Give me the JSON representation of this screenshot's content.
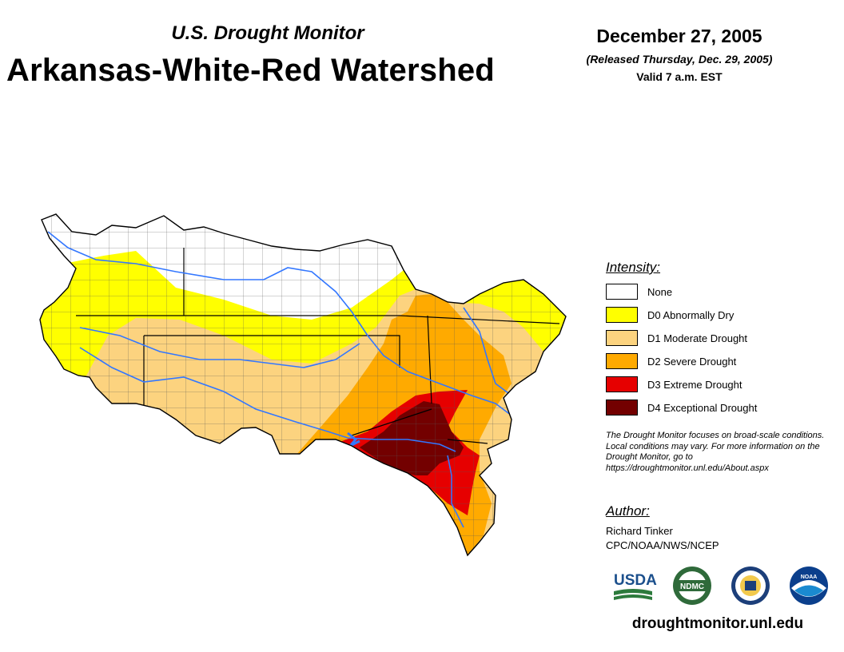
{
  "header": {
    "subtitle": "U.S. Drought Monitor",
    "title": "Arkansas-White-Red Watershed",
    "date": "December 27, 2005",
    "released": "(Released Thursday, Dec. 29, 2005)",
    "valid": "Valid 7 a.m. EST"
  },
  "legend": {
    "heading": "Intensity:",
    "items": [
      {
        "label": "None",
        "color": "#ffffff"
      },
      {
        "label": "D0 Abnormally Dry",
        "color": "#ffff00"
      },
      {
        "label": "D1 Moderate Drought",
        "color": "#fcd37f"
      },
      {
        "label": "D2 Severe Drought",
        "color": "#ffaa00"
      },
      {
        "label": "D3 Extreme Drought",
        "color": "#e60000"
      },
      {
        "label": "D4 Exceptional Drought",
        "color": "#730000"
      }
    ]
  },
  "note": "The Drought Monitor focuses on broad-scale conditions. Local conditions may vary. For more information on the Drought Monitor, go to https://droughtmonitor.unl.edu/About.aspx",
  "author": {
    "heading": "Author:",
    "name": "Richard Tinker",
    "org": "CPC/NOAA/NWS/NCEP"
  },
  "logos": {
    "usda": "USDA",
    "ndmc": "NDMC",
    "noaa": "NOAA"
  },
  "url": "droughtmonitor.unl.edu",
  "colors": {
    "river": "#3377ff",
    "border": "#000000",
    "county": "#555555"
  }
}
